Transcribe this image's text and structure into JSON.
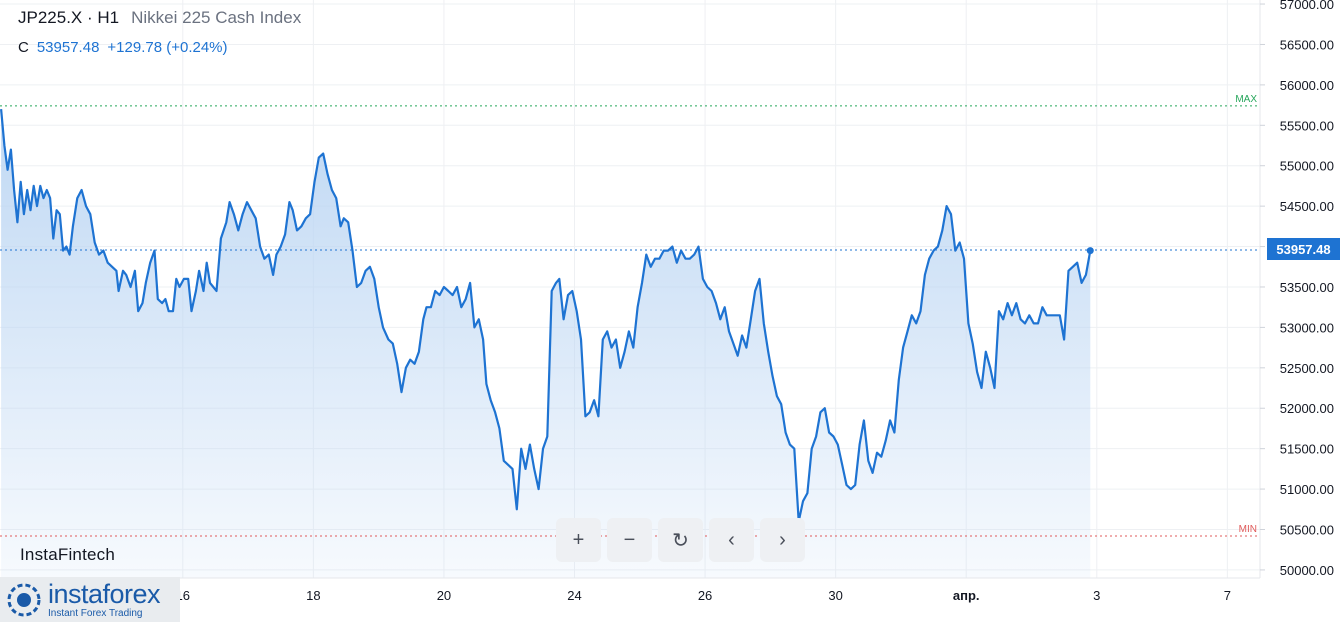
{
  "header": {
    "symbol": "JP225.X · H1",
    "description": "Nikkei 225 Cash Index",
    "close_label": "C",
    "close_value": "53957.48",
    "change": "+129.78 (+0.24%)"
  },
  "brand": "InstaFintech",
  "logo": {
    "name": "instaforex",
    "tagline": "Instant Forex Trading"
  },
  "nav": {
    "zoom_in": "+",
    "zoom_out": "−",
    "reset": "↻",
    "prev": "‹",
    "next": "›"
  },
  "markers": {
    "max_label": "MAX",
    "min_label": "MIN",
    "last_price_label": "53957.48"
  },
  "colors": {
    "line": "#1e73d2",
    "fill_top": "#bcd6f3",
    "max": "#26a65b",
    "min": "#e05a5a",
    "grid": "#eef0f3"
  },
  "chart_data": {
    "type": "area",
    "title": "Nikkei 225 Cash Index",
    "xlabel": "",
    "ylabel": "",
    "ylim": [
      49900,
      57050
    ],
    "y_ticks": [
      "50000.00",
      "50500.00",
      "51000.00",
      "51500.00",
      "52000.00",
      "52500.00",
      "53000.00",
      "53500.00",
      "54000.00",
      "54500.00",
      "55000.00",
      "55500.00",
      "56000.00",
      "56500.00",
      "57000.00"
    ],
    "x_ticks": [
      {
        "label": "16",
        "x": 6
      },
      {
        "label": "18",
        "x": 12
      },
      {
        "label": "20",
        "x": 18
      },
      {
        "label": "24",
        "x": 24
      },
      {
        "label": "26",
        "x": 30
      },
      {
        "label": "30",
        "x": 36
      },
      {
        "label": "апр.",
        "x": 42
      },
      {
        "label": "3",
        "x": 48
      },
      {
        "label": "7",
        "x": 54
      }
    ],
    "xlim": [
      -2.4,
      55.5
    ],
    "max_line": 55740,
    "min_line": 50420,
    "last_price": 53957.48,
    "series": [
      {
        "values": [
          [
            -2.35,
            55700
          ],
          [
            -2.2,
            55250
          ],
          [
            -2.05,
            54950
          ],
          [
            -1.9,
            55200
          ],
          [
            -1.75,
            54700
          ],
          [
            -1.6,
            54300
          ],
          [
            -1.45,
            54800
          ],
          [
            -1.3,
            54400
          ],
          [
            -1.15,
            54700
          ],
          [
            -1.0,
            54450
          ],
          [
            -0.85,
            54750
          ],
          [
            -0.7,
            54500
          ],
          [
            -0.55,
            54750
          ],
          [
            -0.4,
            54600
          ],
          [
            -0.25,
            54700
          ],
          [
            -0.1,
            54600
          ],
          [
            0.05,
            54100
          ],
          [
            0.2,
            54450
          ],
          [
            0.35,
            54400
          ],
          [
            0.5,
            53950
          ],
          [
            0.65,
            54000
          ],
          [
            0.8,
            53900
          ],
          [
            0.95,
            54250
          ],
          [
            1.15,
            54600
          ],
          [
            1.35,
            54700
          ],
          [
            1.55,
            54500
          ],
          [
            1.75,
            54400
          ],
          [
            1.95,
            54050
          ],
          [
            2.15,
            53900
          ],
          [
            2.35,
            53950
          ],
          [
            2.55,
            53800
          ],
          [
            2.75,
            53750
          ],
          [
            2.95,
            53700
          ],
          [
            3.05,
            53450
          ],
          [
            3.25,
            53700
          ],
          [
            3.4,
            53650
          ],
          [
            3.6,
            53500
          ],
          [
            3.8,
            53700
          ],
          [
            3.95,
            53200
          ],
          [
            4.15,
            53300
          ],
          [
            4.3,
            53550
          ],
          [
            4.5,
            53800
          ],
          [
            4.7,
            53950
          ],
          [
            4.85,
            53350
          ],
          [
            5.05,
            53300
          ],
          [
            5.2,
            53350
          ],
          [
            5.35,
            53200
          ],
          [
            5.55,
            53200
          ],
          [
            5.7,
            53600
          ],
          [
            5.85,
            53500
          ],
          [
            6.05,
            53600
          ],
          [
            6.25,
            53600
          ],
          [
            6.4,
            53200
          ],
          [
            6.6,
            53450
          ],
          [
            6.75,
            53700
          ],
          [
            6.95,
            53450
          ],
          [
            7.1,
            53800
          ],
          [
            7.25,
            53550
          ],
          [
            7.4,
            53500
          ],
          [
            7.55,
            53450
          ],
          [
            7.75,
            54100
          ],
          [
            8.0,
            54300
          ],
          [
            8.15,
            54550
          ],
          [
            8.35,
            54400
          ],
          [
            8.55,
            54200
          ],
          [
            8.75,
            54400
          ],
          [
            8.95,
            54550
          ],
          [
            9.15,
            54450
          ],
          [
            9.35,
            54350
          ],
          [
            9.55,
            54000
          ],
          [
            9.75,
            53850
          ],
          [
            9.95,
            53900
          ],
          [
            10.15,
            53650
          ],
          [
            10.3,
            53900
          ],
          [
            10.5,
            54000
          ],
          [
            10.7,
            54150
          ],
          [
            10.9,
            54550
          ],
          [
            11.05,
            54450
          ],
          [
            11.25,
            54200
          ],
          [
            11.45,
            54250
          ],
          [
            11.65,
            54350
          ],
          [
            11.85,
            54400
          ],
          [
            12.05,
            54800
          ],
          [
            12.25,
            55100
          ],
          [
            12.45,
            55150
          ],
          [
            12.65,
            54900
          ],
          [
            12.85,
            54700
          ],
          [
            13.05,
            54600
          ],
          [
            13.25,
            54250
          ],
          [
            13.4,
            54350
          ],
          [
            13.6,
            54300
          ],
          [
            13.8,
            53950
          ],
          [
            14.0,
            53500
          ],
          [
            14.2,
            53550
          ],
          [
            14.4,
            53700
          ],
          [
            14.6,
            53750
          ],
          [
            14.8,
            53600
          ],
          [
            15.0,
            53250
          ],
          [
            15.2,
            53000
          ],
          [
            15.45,
            52850
          ],
          [
            15.65,
            52800
          ],
          [
            15.85,
            52550
          ],
          [
            16.05,
            52200
          ],
          [
            16.25,
            52500
          ],
          [
            16.45,
            52600
          ],
          [
            16.65,
            52550
          ],
          [
            16.85,
            52700
          ],
          [
            17.05,
            53100
          ],
          [
            17.2,
            53250
          ],
          [
            17.4,
            53250
          ],
          [
            17.6,
            53450
          ],
          [
            17.8,
            53400
          ],
          [
            18.0,
            53500
          ],
          [
            18.2,
            53450
          ],
          [
            18.4,
            53400
          ],
          [
            18.6,
            53500
          ],
          [
            18.8,
            53250
          ],
          [
            19.0,
            53350
          ],
          [
            19.2,
            53550
          ],
          [
            19.4,
            53000
          ],
          [
            19.6,
            53100
          ],
          [
            19.8,
            52850
          ],
          [
            19.95,
            52300
          ],
          [
            20.15,
            52100
          ],
          [
            20.35,
            51950
          ],
          [
            20.55,
            51750
          ],
          [
            20.75,
            51350
          ],
          [
            20.95,
            51300
          ],
          [
            21.15,
            51250
          ],
          [
            21.35,
            50750
          ],
          [
            21.55,
            51500
          ],
          [
            21.75,
            51250
          ],
          [
            21.95,
            51550
          ],
          [
            22.15,
            51250
          ],
          [
            22.35,
            51000
          ],
          [
            22.55,
            51500
          ],
          [
            22.75,
            51650
          ],
          [
            22.95,
            53450
          ],
          [
            23.15,
            53550
          ],
          [
            23.3,
            53600
          ],
          [
            23.5,
            53100
          ],
          [
            23.7,
            53400
          ],
          [
            23.9,
            53450
          ],
          [
            24.1,
            53200
          ],
          [
            24.3,
            52850
          ],
          [
            24.5,
            51900
          ],
          [
            24.7,
            51950
          ],
          [
            24.9,
            52100
          ],
          [
            25.1,
            51900
          ],
          [
            25.3,
            52850
          ],
          [
            25.5,
            52950
          ],
          [
            25.7,
            52750
          ],
          [
            25.9,
            52850
          ],
          [
            26.1,
            52500
          ],
          [
            26.3,
            52700
          ],
          [
            26.5,
            52950
          ],
          [
            26.7,
            52750
          ],
          [
            26.9,
            53250
          ],
          [
            27.1,
            53550
          ],
          [
            27.3,
            53900
          ],
          [
            27.5,
            53750
          ],
          [
            27.7,
            53850
          ],
          [
            27.9,
            53850
          ],
          [
            28.1,
            53950
          ],
          [
            28.3,
            53950
          ],
          [
            28.5,
            54000
          ],
          [
            28.7,
            53800
          ],
          [
            28.9,
            53950
          ],
          [
            29.1,
            53850
          ],
          [
            29.3,
            53850
          ],
          [
            29.5,
            53900
          ],
          [
            29.7,
            54000
          ],
          [
            29.9,
            53600
          ],
          [
            30.1,
            53500
          ],
          [
            30.3,
            53450
          ],
          [
            30.5,
            53300
          ],
          [
            30.7,
            53100
          ],
          [
            30.9,
            53250
          ],
          [
            31.1,
            52950
          ],
          [
            31.3,
            52800
          ],
          [
            31.5,
            52650
          ],
          [
            31.7,
            52900
          ],
          [
            31.9,
            52750
          ],
          [
            32.1,
            53100
          ],
          [
            32.3,
            53450
          ],
          [
            32.5,
            53600
          ],
          [
            32.7,
            53050
          ],
          [
            32.9,
            52700
          ],
          [
            33.1,
            52400
          ],
          [
            33.3,
            52150
          ],
          [
            33.5,
            52050
          ],
          [
            33.7,
            51700
          ],
          [
            33.9,
            51550
          ],
          [
            34.1,
            51500
          ],
          [
            34.3,
            50600
          ],
          [
            34.5,
            50850
          ],
          [
            34.7,
            50950
          ],
          [
            34.9,
            51500
          ],
          [
            35.1,
            51650
          ],
          [
            35.3,
            51950
          ],
          [
            35.5,
            52000
          ],
          [
            35.7,
            51700
          ],
          [
            35.9,
            51650
          ],
          [
            36.1,
            51550
          ],
          [
            36.3,
            51300
          ],
          [
            36.5,
            51050
          ],
          [
            36.7,
            51000
          ],
          [
            36.9,
            51050
          ],
          [
            37.1,
            51550
          ],
          [
            37.3,
            51850
          ],
          [
            37.5,
            51350
          ],
          [
            37.7,
            51200
          ],
          [
            37.9,
            51450
          ],
          [
            38.1,
            51400
          ],
          [
            38.3,
            51600
          ],
          [
            38.5,
            51850
          ],
          [
            38.7,
            51700
          ],
          [
            38.9,
            52350
          ],
          [
            39.1,
            52750
          ],
          [
            39.3,
            52950
          ],
          [
            39.5,
            53150
          ],
          [
            39.7,
            53050
          ],
          [
            39.9,
            53200
          ],
          [
            40.1,
            53650
          ],
          [
            40.3,
            53850
          ],
          [
            40.5,
            53950
          ],
          [
            40.7,
            54000
          ],
          [
            40.9,
            54200
          ],
          [
            41.1,
            54500
          ],
          [
            41.3,
            54400
          ],
          [
            41.5,
            53950
          ],
          [
            41.7,
            54050
          ],
          [
            41.9,
            53850
          ],
          [
            42.1,
            53050
          ],
          [
            42.3,
            52800
          ],
          [
            42.5,
            52450
          ],
          [
            42.7,
            52250
          ],
          [
            42.9,
            52700
          ],
          [
            43.1,
            52500
          ],
          [
            43.3,
            52250
          ],
          [
            43.5,
            53200
          ],
          [
            43.7,
            53100
          ],
          [
            43.9,
            53300
          ],
          [
            44.1,
            53150
          ],
          [
            44.3,
            53300
          ],
          [
            44.5,
            53100
          ],
          [
            44.7,
            53050
          ],
          [
            44.9,
            53150
          ],
          [
            45.1,
            53050
          ],
          [
            45.3,
            53050
          ],
          [
            45.5,
            53250
          ],
          [
            45.7,
            53150
          ],
          [
            45.9,
            53150
          ],
          [
            46.1,
            53150
          ],
          [
            46.3,
            53150
          ],
          [
            46.5,
            52850
          ],
          [
            46.7,
            53700
          ],
          [
            46.9,
            53750
          ],
          [
            47.1,
            53800
          ],
          [
            47.3,
            53550
          ],
          [
            47.5,
            53650
          ],
          [
            47.7,
            53950
          ]
        ]
      }
    ]
  }
}
